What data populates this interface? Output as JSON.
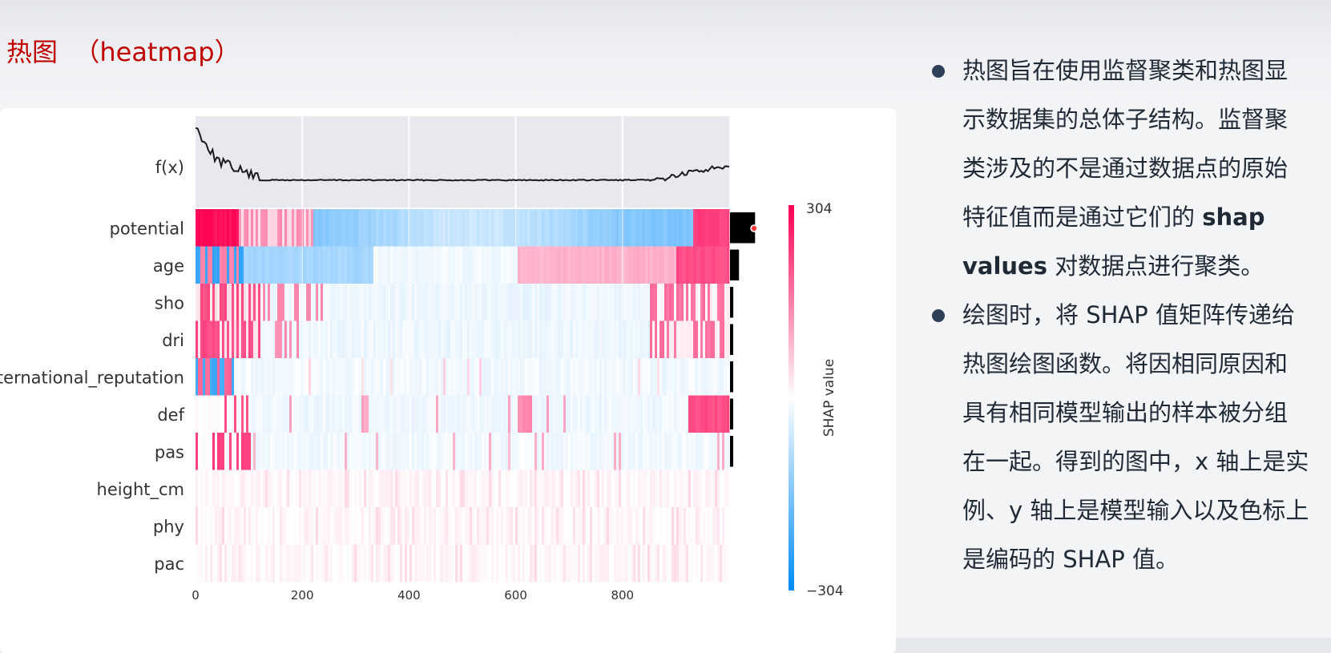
{
  "slide": {
    "title": "热图  （heatmap）",
    "notes": [
      {
        "before": "热图旨在使用监督聚类和热图显示数据集的总体子结构。监督聚类涉及的不是通过数据点的原始特征值而是通过它们的 ",
        "bold": "shap values",
        "after": " 对数据点进行聚类。"
      },
      {
        "before": "绘图时，将 SHAP 值矩阵传递给热图绘图函数。将因相同原因和具有相同模型输出的样本被分组在一起。得到的图中，x 轴上是实例、y 轴上是模型输入以及色标上是编码的 SHAP 值。",
        "bold": "",
        "after": ""
      }
    ]
  },
  "chart_data": {
    "type": "heatmap",
    "fx_label": "f(x)",
    "features": [
      "potential",
      "age",
      "sho",
      "dri",
      "international_reputation",
      "def",
      "pas",
      "height_cm",
      "phy",
      "pac"
    ],
    "importance": [
      0.92,
      0.33,
      0.12,
      0.09,
      0.08,
      0.08,
      0.06,
      0.0,
      0.0,
      0.0
    ],
    "x_ticks": [
      0,
      200,
      400,
      600,
      800
    ],
    "xlim": [
      0,
      1000
    ],
    "colorbar": {
      "label": "SHAP value",
      "max": 304,
      "min": -304,
      "max_label": "304",
      "min_label": "−304"
    },
    "colors": {
      "positive": "#ff0052",
      "negative": "#008bfb",
      "neutral": "#ffffff",
      "fx_bg": "#e8e9ee",
      "fx_line": "#1a1a1a"
    },
    "grid": true
  }
}
